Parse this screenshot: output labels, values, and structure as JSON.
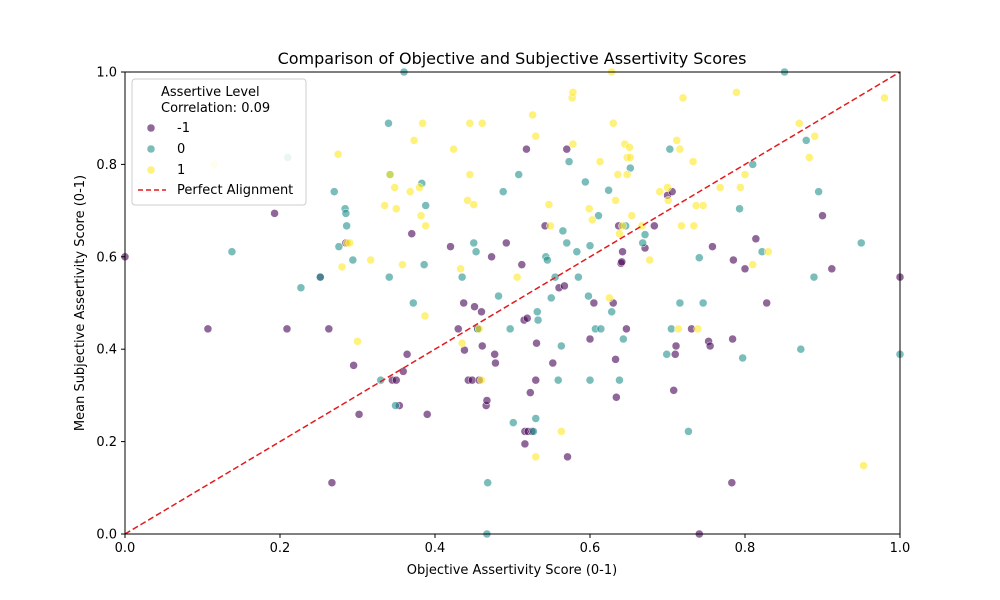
{
  "chart_data": {
    "type": "scatter",
    "title": "Comparison of Objective and Subjective Assertivity Scores",
    "xlabel": "Objective Assertivity Score (0-1)",
    "ylabel": "Mean Subjective Assertivity Score (0-1)",
    "xlim": [
      0.0,
      1.0
    ],
    "ylim": [
      0.0,
      1.0
    ],
    "xticks": [
      "0.0",
      "0.2",
      "0.4",
      "0.6",
      "0.8",
      "1.0"
    ],
    "yticks": [
      "0.0",
      "0.2",
      "0.4",
      "0.6",
      "0.8",
      "1.0"
    ],
    "grid": false,
    "legend": {
      "position": "top-left",
      "title": "Assertive Level",
      "subtitle": "Correlation: 0.09",
      "line_label": "Perfect Alignment"
    },
    "reference_line": {
      "name": "Perfect Alignment",
      "points": [
        [
          0,
          0
        ],
        [
          1,
          1
        ]
      ],
      "color": "#e41a1c",
      "style": "dashed"
    },
    "series": [
      {
        "name": "-1",
        "color": "#440154",
        "points": [
          [
            0.0,
            0.6
          ],
          [
            0.107,
            0.444
          ],
          [
            0.193,
            0.694
          ],
          [
            0.209,
            0.444
          ],
          [
            0.252,
            0.556
          ],
          [
            0.263,
            0.444
          ],
          [
            0.267,
            0.111
          ],
          [
            0.285,
            0.63
          ],
          [
            0.295,
            0.365
          ],
          [
            0.302,
            0.259
          ],
          [
            0.345,
            0.333
          ],
          [
            0.35,
            0.333
          ],
          [
            0.354,
            0.278
          ],
          [
            0.359,
            0.352
          ],
          [
            0.364,
            0.389
          ],
          [
            0.37,
            0.65
          ],
          [
            0.39,
            0.259
          ],
          [
            0.42,
            0.622
          ],
          [
            0.43,
            0.444
          ],
          [
            0.437,
            0.5
          ],
          [
            0.438,
            0.398
          ],
          [
            0.443,
            0.333
          ],
          [
            0.448,
            0.333
          ],
          [
            0.451,
            0.492
          ],
          [
            0.455,
            0.444
          ],
          [
            0.457,
            0.333
          ],
          [
            0.46,
            0.481
          ],
          [
            0.461,
            0.407
          ],
          [
            0.466,
            0.278
          ],
          [
            0.467,
            0.289
          ],
          [
            0.473,
            0.6
          ],
          [
            0.477,
            0.389
          ],
          [
            0.478,
            0.37
          ],
          [
            0.492,
            0.63
          ],
          [
            0.512,
            0.583
          ],
          [
            0.515,
            0.463
          ],
          [
            0.516,
            0.222
          ],
          [
            0.516,
            0.195
          ],
          [
            0.518,
            0.833
          ],
          [
            0.519,
            0.467
          ],
          [
            0.52,
            0.222
          ],
          [
            0.523,
            0.306
          ],
          [
            0.525,
            0.222
          ],
          [
            0.53,
            0.333
          ],
          [
            0.531,
            0.413
          ],
          [
            0.542,
            0.667
          ],
          [
            0.552,
            0.37
          ],
          [
            0.56,
            0.533
          ],
          [
            0.567,
            0.537
          ],
          [
            0.57,
            0.833
          ],
          [
            0.571,
            0.167
          ],
          [
            0.6,
            0.422
          ],
          [
            0.605,
            0.5
          ],
          [
            0.63,
            0.5
          ],
          [
            0.633,
            0.378
          ],
          [
            0.634,
            0.296
          ],
          [
            0.637,
            0.667
          ],
          [
            0.64,
            0.586
          ],
          [
            0.641,
            0.589
          ],
          [
            0.642,
            0.611
          ],
          [
            0.647,
            0.444
          ],
          [
            0.671,
            0.619
          ],
          [
            0.683,
            0.667
          ],
          [
            0.7,
            0.733
          ],
          [
            0.706,
            0.741
          ],
          [
            0.708,
            0.311
          ],
          [
            0.71,
            0.389
          ],
          [
            0.711,
            0.407
          ],
          [
            0.731,
            0.444
          ],
          [
            0.741,
            0.0
          ],
          [
            0.753,
            0.417
          ],
          [
            0.755,
            0.407
          ],
          [
            0.758,
            0.622
          ],
          [
            0.784,
            0.422
          ],
          [
            0.783,
            0.111
          ],
          [
            0.785,
            0.593
          ],
          [
            0.8,
            0.574
          ],
          [
            0.814,
            0.639
          ],
          [
            0.828,
            0.5
          ],
          [
            0.9,
            0.689
          ],
          [
            0.912,
            0.574
          ],
          [
            1.0,
            0.556
          ]
        ]
      },
      {
        "name": "0",
        "color": "#21918c",
        "points": [
          [
            0.138,
            0.611
          ],
          [
            0.21,
            0.815
          ],
          [
            0.227,
            0.533
          ],
          [
            0.252,
            0.556
          ],
          [
            0.27,
            0.741
          ],
          [
            0.276,
            0.622
          ],
          [
            0.284,
            0.704
          ],
          [
            0.285,
            0.694
          ],
          [
            0.286,
            0.667
          ],
          [
            0.294,
            0.593
          ],
          [
            0.33,
            0.333
          ],
          [
            0.34,
            0.889
          ],
          [
            0.341,
            0.556
          ],
          [
            0.342,
            0.778
          ],
          [
            0.349,
            0.278
          ],
          [
            0.36,
            1.0
          ],
          [
            0.372,
            0.5
          ],
          [
            0.383,
            0.759
          ],
          [
            0.386,
            0.583
          ],
          [
            0.388,
            0.711
          ],
          [
            0.435,
            0.556
          ],
          [
            0.45,
            0.63
          ],
          [
            0.453,
            0.611
          ],
          [
            0.455,
            0.444
          ],
          [
            0.467,
            0.0
          ],
          [
            0.468,
            0.111
          ],
          [
            0.482,
            0.515
          ],
          [
            0.488,
            0.741
          ],
          [
            0.497,
            0.444
          ],
          [
            0.501,
            0.241
          ],
          [
            0.508,
            0.778
          ],
          [
            0.527,
            0.222
          ],
          [
            0.53,
            0.25
          ],
          [
            0.532,
            0.481
          ],
          [
            0.533,
            0.463
          ],
          [
            0.543,
            0.6
          ],
          [
            0.545,
            0.593
          ],
          [
            0.55,
            0.511
          ],
          [
            0.555,
            0.556
          ],
          [
            0.559,
            0.333
          ],
          [
            0.563,
            0.407
          ],
          [
            0.565,
            0.656
          ],
          [
            0.57,
            0.63
          ],
          [
            0.573,
            0.806
          ],
          [
            0.583,
            0.611
          ],
          [
            0.585,
            0.556
          ],
          [
            0.594,
            0.762
          ],
          [
            0.598,
            0.515
          ],
          [
            0.6,
            0.333
          ],
          [
            0.607,
            0.444
          ],
          [
            0.611,
            0.689
          ],
          [
            0.614,
            0.444
          ],
          [
            0.6,
            0.624
          ],
          [
            0.624,
            0.744
          ],
          [
            0.628,
            0.481
          ],
          [
            0.638,
            0.333
          ],
          [
            0.643,
            0.422
          ],
          [
            0.646,
            0.667
          ],
          [
            0.652,
            0.792
          ],
          [
            0.668,
            0.63
          ],
          [
            0.671,
            0.648
          ],
          [
            0.699,
            0.389
          ],
          [
            0.703,
            0.833
          ],
          [
            0.705,
            0.444
          ],
          [
            0.716,
            0.5
          ],
          [
            0.727,
            0.222
          ],
          [
            0.741,
            0.598
          ],
          [
            0.746,
            0.5
          ],
          [
            0.793,
            0.704
          ],
          [
            0.797,
            0.381
          ],
          [
            0.81,
            0.8
          ],
          [
            0.822,
            0.611
          ],
          [
            0.851,
            1.0
          ],
          [
            0.872,
            0.4
          ],
          [
            0.879,
            0.852
          ],
          [
            0.889,
            0.556
          ],
          [
            0.895,
            0.741
          ],
          [
            0.95,
            0.63
          ],
          [
            1.0,
            0.389
          ]
        ]
      },
      {
        "name": "1",
        "color": "#fde725",
        "points": [
          [
            0.115,
            0.8
          ],
          [
            0.275,
            0.822
          ],
          [
            0.28,
            0.578
          ],
          [
            0.287,
            0.63
          ],
          [
            0.29,
            0.63
          ],
          [
            0.3,
            0.417
          ],
          [
            0.317,
            0.593
          ],
          [
            0.335,
            0.711
          ],
          [
            0.342,
            0.778
          ],
          [
            0.348,
            0.75
          ],
          [
            0.35,
            0.704
          ],
          [
            0.358,
            0.583
          ],
          [
            0.368,
            0.741
          ],
          [
            0.373,
            0.852
          ],
          [
            0.38,
            0.75
          ],
          [
            0.382,
            0.689
          ],
          [
            0.384,
            0.889
          ],
          [
            0.387,
            0.472
          ],
          [
            0.388,
            0.667
          ],
          [
            0.424,
            0.833
          ],
          [
            0.433,
            0.574
          ],
          [
            0.435,
            0.413
          ],
          [
            0.442,
            0.722
          ],
          [
            0.445,
            0.778
          ],
          [
            0.445,
            0.889
          ],
          [
            0.45,
            0.713
          ],
          [
            0.457,
            0.444
          ],
          [
            0.46,
            0.333
          ],
          [
            0.461,
            0.889
          ],
          [
            0.506,
            0.556
          ],
          [
            0.526,
            0.907
          ],
          [
            0.53,
            0.861
          ],
          [
            0.53,
            0.167
          ],
          [
            0.547,
            0.713
          ],
          [
            0.549,
            0.667
          ],
          [
            0.563,
            0.222
          ],
          [
            0.577,
            0.944
          ],
          [
            0.578,
            0.956
          ],
          [
            0.578,
            0.844
          ],
          [
            0.599,
            0.704
          ],
          [
            0.603,
            0.68
          ],
          [
            0.613,
            0.806
          ],
          [
            0.625,
            0.511
          ],
          [
            0.628,
            1.0
          ],
          [
            0.63,
            0.889
          ],
          [
            0.633,
            0.722
          ],
          [
            0.636,
            0.778
          ],
          [
            0.638,
            0.65
          ],
          [
            0.642,
            0.667
          ],
          [
            0.645,
            0.844
          ],
          [
            0.648,
            0.778
          ],
          [
            0.648,
            0.815
          ],
          [
            0.651,
            0.837
          ],
          [
            0.652,
            0.815
          ],
          [
            0.654,
            0.689
          ],
          [
            0.667,
            0.667
          ],
          [
            0.677,
            0.593
          ],
          [
            0.69,
            0.741
          ],
          [
            0.7,
            0.75
          ],
          [
            0.701,
            0.722
          ],
          [
            0.712,
            0.852
          ],
          [
            0.714,
            0.444
          ],
          [
            0.716,
            0.833
          ],
          [
            0.718,
            0.667
          ],
          [
            0.72,
            0.944
          ],
          [
            0.733,
            0.806
          ],
          [
            0.734,
            0.667
          ],
          [
            0.737,
            0.711
          ],
          [
            0.739,
            0.444
          ],
          [
            0.746,
            0.711
          ],
          [
            0.768,
            0.75
          ],
          [
            0.794,
            0.75
          ],
          [
            0.8,
            0.778
          ],
          [
            0.81,
            0.583
          ],
          [
            0.789,
            0.956
          ],
          [
            0.83,
            0.611
          ],
          [
            0.87,
            0.889
          ],
          [
            0.883,
            0.815
          ],
          [
            0.89,
            0.861
          ],
          [
            0.953,
            0.148
          ],
          [
            0.98,
            0.944
          ]
        ]
      }
    ]
  }
}
